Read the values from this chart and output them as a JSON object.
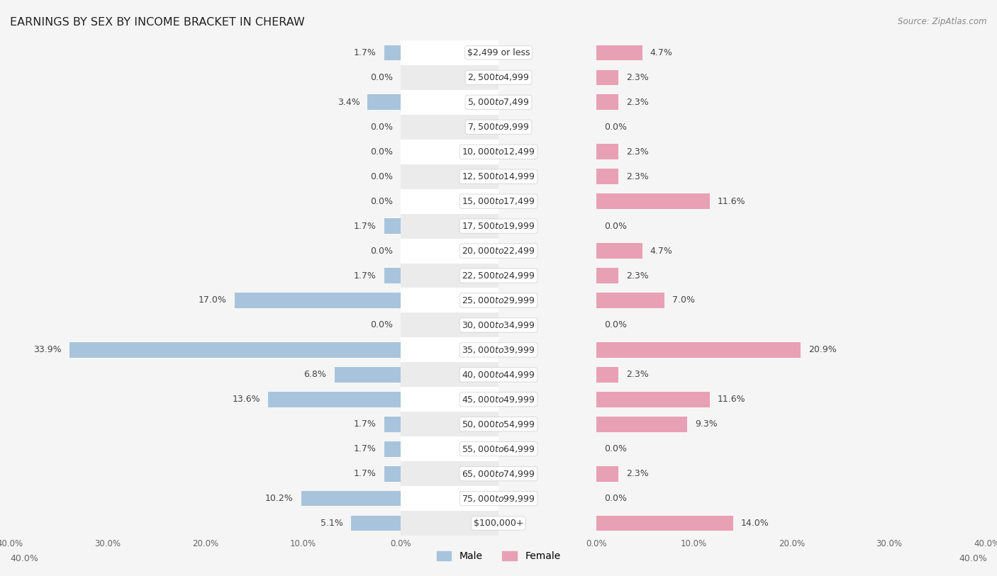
{
  "title": "EARNINGS BY SEX BY INCOME BRACKET IN CHERAW",
  "source": "Source: ZipAtlas.com",
  "categories": [
    "$2,499 or less",
    "$2,500 to $4,999",
    "$5,000 to $7,499",
    "$7,500 to $9,999",
    "$10,000 to $12,499",
    "$12,500 to $14,999",
    "$15,000 to $17,499",
    "$17,500 to $19,999",
    "$20,000 to $22,499",
    "$22,500 to $24,999",
    "$25,000 to $29,999",
    "$30,000 to $34,999",
    "$35,000 to $39,999",
    "$40,000 to $44,999",
    "$45,000 to $49,999",
    "$50,000 to $54,999",
    "$55,000 to $64,999",
    "$65,000 to $74,999",
    "$75,000 to $99,999",
    "$100,000+"
  ],
  "male": [
    1.7,
    0.0,
    3.4,
    0.0,
    0.0,
    0.0,
    0.0,
    1.7,
    0.0,
    1.7,
    17.0,
    0.0,
    33.9,
    6.8,
    13.6,
    1.7,
    1.7,
    1.7,
    10.2,
    5.1
  ],
  "female": [
    4.7,
    2.3,
    2.3,
    0.0,
    2.3,
    2.3,
    11.6,
    0.0,
    4.7,
    2.3,
    7.0,
    0.0,
    20.9,
    2.3,
    11.6,
    9.3,
    0.0,
    2.3,
    0.0,
    14.0
  ],
  "male_color": "#a8c4dc",
  "female_color": "#e8a0b4",
  "row_colors": [
    "#ffffff",
    "#ebebeb"
  ],
  "bg_color": "#f5f5f5",
  "xlim": 40.0,
  "label_fontsize": 9.0,
  "category_fontsize": 9.0,
  "title_fontsize": 11.5,
  "bar_height": 0.62
}
